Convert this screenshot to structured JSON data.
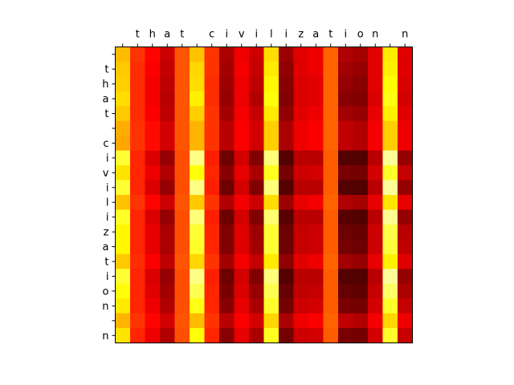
{
  "chart_data": {
    "type": "heatmap",
    "title": "",
    "xlabel": "",
    "ylabel": "",
    "colormap": "hot",
    "x_labels": [
      " ",
      "t",
      "h",
      "a",
      "t",
      " ",
      "c",
      "i",
      "v",
      "i",
      "l",
      "i",
      "z",
      "a",
      "t",
      "i",
      "o",
      "n",
      " ",
      "n"
    ],
    "y_labels": [
      " ",
      "t",
      "h",
      "a",
      "t",
      " ",
      "c",
      "i",
      "v",
      "i",
      "l",
      "i",
      "z",
      "a",
      "t",
      "i",
      "o",
      "n",
      " ",
      "n"
    ],
    "value_range": [
      0,
      1
    ],
    "values": [
      [
        0.65,
        0.45,
        0.38,
        0.3,
        0.5,
        0.66,
        0.45,
        0.25,
        0.35,
        0.3,
        0.7,
        0.23,
        0.33,
        0.35,
        0.52,
        0.26,
        0.24,
        0.33,
        0.72,
        0.33
      ],
      [
        0.67,
        0.44,
        0.37,
        0.29,
        0.5,
        0.69,
        0.45,
        0.24,
        0.36,
        0.29,
        0.72,
        0.21,
        0.33,
        0.35,
        0.52,
        0.24,
        0.22,
        0.33,
        0.73,
        0.33
      ],
      [
        0.68,
        0.44,
        0.36,
        0.28,
        0.5,
        0.7,
        0.44,
        0.23,
        0.35,
        0.28,
        0.74,
        0.2,
        0.32,
        0.33,
        0.52,
        0.22,
        0.2,
        0.33,
        0.75,
        0.32
      ],
      [
        0.7,
        0.44,
        0.36,
        0.27,
        0.5,
        0.73,
        0.44,
        0.22,
        0.35,
        0.26,
        0.76,
        0.19,
        0.32,
        0.33,
        0.52,
        0.2,
        0.19,
        0.32,
        0.77,
        0.31
      ],
      [
        0.67,
        0.44,
        0.37,
        0.28,
        0.5,
        0.68,
        0.45,
        0.24,
        0.36,
        0.29,
        0.72,
        0.21,
        0.33,
        0.35,
        0.52,
        0.24,
        0.22,
        0.34,
        0.73,
        0.33
      ],
      [
        0.63,
        0.45,
        0.39,
        0.31,
        0.5,
        0.64,
        0.45,
        0.27,
        0.37,
        0.31,
        0.68,
        0.25,
        0.35,
        0.37,
        0.52,
        0.28,
        0.26,
        0.36,
        0.68,
        0.35
      ],
      [
        0.62,
        0.45,
        0.39,
        0.31,
        0.5,
        0.64,
        0.45,
        0.27,
        0.37,
        0.31,
        0.68,
        0.25,
        0.35,
        0.37,
        0.52,
        0.28,
        0.26,
        0.36,
        0.68,
        0.35
      ],
      [
        0.8,
        0.43,
        0.32,
        0.22,
        0.49,
        0.88,
        0.42,
        0.16,
        0.31,
        0.19,
        0.87,
        0.12,
        0.27,
        0.27,
        0.51,
        0.12,
        0.12,
        0.27,
        0.9,
        0.22
      ],
      [
        0.71,
        0.43,
        0.35,
        0.26,
        0.49,
        0.76,
        0.43,
        0.2,
        0.34,
        0.25,
        0.78,
        0.17,
        0.3,
        0.31,
        0.51,
        0.18,
        0.17,
        0.31,
        0.79,
        0.29
      ],
      [
        0.8,
        0.43,
        0.32,
        0.22,
        0.49,
        0.88,
        0.42,
        0.16,
        0.31,
        0.19,
        0.87,
        0.12,
        0.27,
        0.27,
        0.51,
        0.12,
        0.12,
        0.27,
        0.9,
        0.22
      ],
      [
        0.66,
        0.45,
        0.38,
        0.3,
        0.5,
        0.67,
        0.45,
        0.26,
        0.36,
        0.3,
        0.7,
        0.23,
        0.34,
        0.36,
        0.52,
        0.26,
        0.24,
        0.34,
        0.71,
        0.34
      ],
      [
        0.79,
        0.43,
        0.32,
        0.22,
        0.49,
        0.87,
        0.42,
        0.16,
        0.31,
        0.19,
        0.86,
        0.13,
        0.27,
        0.27,
        0.51,
        0.13,
        0.12,
        0.27,
        0.89,
        0.22
      ],
      [
        0.74,
        0.43,
        0.34,
        0.25,
        0.49,
        0.8,
        0.43,
        0.19,
        0.33,
        0.23,
        0.8,
        0.16,
        0.29,
        0.3,
        0.51,
        0.16,
        0.15,
        0.3,
        0.82,
        0.27
      ],
      [
        0.74,
        0.43,
        0.34,
        0.25,
        0.49,
        0.79,
        0.43,
        0.19,
        0.33,
        0.24,
        0.8,
        0.16,
        0.29,
        0.3,
        0.51,
        0.17,
        0.16,
        0.3,
        0.81,
        0.28
      ],
      [
        0.67,
        0.44,
        0.37,
        0.28,
        0.5,
        0.69,
        0.45,
        0.24,
        0.36,
        0.29,
        0.72,
        0.21,
        0.33,
        0.35,
        0.52,
        0.24,
        0.22,
        0.34,
        0.73,
        0.33
      ],
      [
        0.8,
        0.43,
        0.32,
        0.22,
        0.49,
        0.88,
        0.42,
        0.16,
        0.31,
        0.19,
        0.87,
        0.12,
        0.27,
        0.27,
        0.51,
        0.12,
        0.12,
        0.27,
        0.9,
        0.22
      ],
      [
        0.76,
        0.43,
        0.33,
        0.24,
        0.49,
        0.83,
        0.43,
        0.18,
        0.32,
        0.22,
        0.83,
        0.15,
        0.28,
        0.29,
        0.51,
        0.15,
        0.14,
        0.29,
        0.85,
        0.25
      ],
      [
        0.72,
        0.43,
        0.35,
        0.26,
        0.49,
        0.77,
        0.43,
        0.2,
        0.34,
        0.25,
        0.79,
        0.17,
        0.3,
        0.31,
        0.51,
        0.18,
        0.17,
        0.31,
        0.79,
        0.29
      ],
      [
        0.64,
        0.45,
        0.38,
        0.31,
        0.5,
        0.65,
        0.45,
        0.27,
        0.37,
        0.31,
        0.69,
        0.25,
        0.35,
        0.37,
        0.52,
        0.28,
        0.26,
        0.36,
        0.69,
        0.35
      ],
      [
        0.71,
        0.43,
        0.35,
        0.26,
        0.49,
        0.76,
        0.43,
        0.2,
        0.34,
        0.25,
        0.78,
        0.17,
        0.3,
        0.31,
        0.51,
        0.18,
        0.17,
        0.31,
        0.79,
        0.29
      ]
    ]
  }
}
